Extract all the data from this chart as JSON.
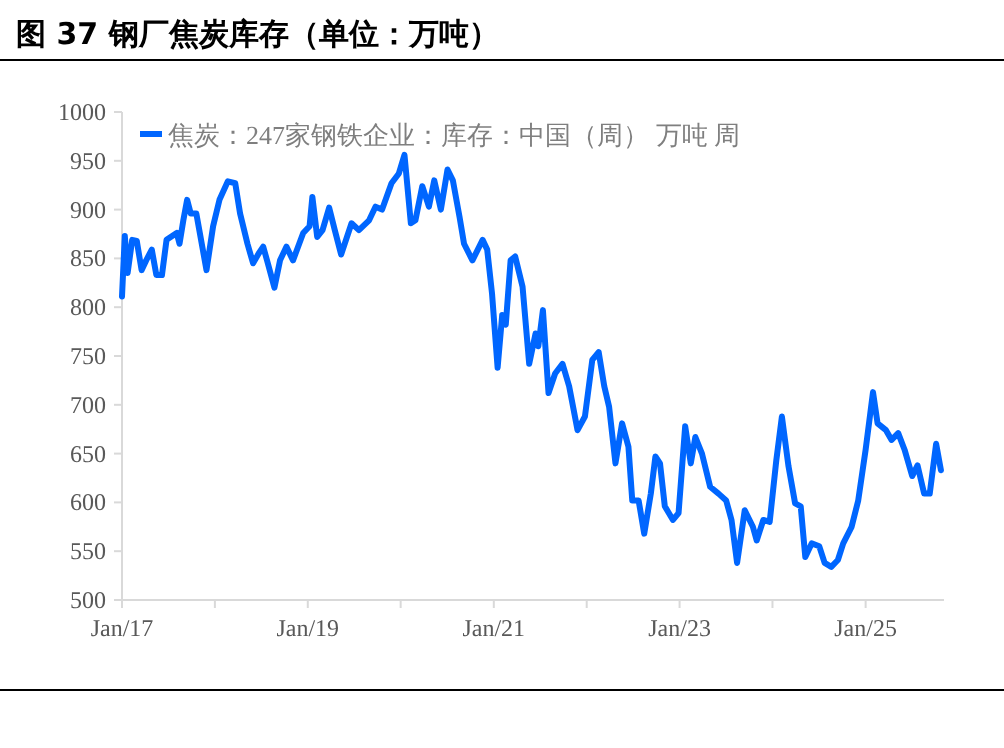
{
  "chart_data": {
    "type": "line",
    "title": "图 37 钢厂焦炭库存（单位：万吨）",
    "series": [
      {
        "name": "焦炭：247家钢铁企业：库存：中国（周） 万吨 周",
        "color": "#0066ff",
        "x": [
          "2017-01-01",
          "2017-01-12",
          "2017-01-23",
          "2017-02-10",
          "2017-02-28",
          "2017-03-19",
          "2017-04-06",
          "2017-04-28",
          "2017-05-16",
          "2017-06-07",
          "2017-06-25",
          "2017-08-04",
          "2017-08-15",
          "2017-08-30",
          "2017-09-14",
          "2017-09-28",
          "2017-10-20",
          "2017-11-29",
          "2017-12-25",
          "2018-01-19",
          "2018-02-21",
          "2018-03-22",
          "2018-04-10",
          "2018-05-09",
          "2018-05-31",
          "2018-06-22",
          "2018-07-10",
          "2018-07-28",
          "2018-08-23",
          "2018-09-14",
          "2018-10-09",
          "2018-11-04",
          "2018-12-14",
          "2019-01-08",
          "2019-01-19",
          "2019-02-07",
          "2019-02-28",
          "2019-03-26",
          "2019-04-17",
          "2019-05-12",
          "2019-06-22",
          "2019-07-21",
          "2019-08-30",
          "2019-09-24",
          "2019-10-20",
          "2019-11-26",
          "2019-12-25",
          "2020-01-16",
          "2020-02-10",
          "2020-02-28",
          "2020-03-26",
          "2020-04-21",
          "2020-05-12",
          "2020-06-07",
          "2020-07-03",
          "2020-07-24",
          "2020-08-19",
          "2020-09-06",
          "2020-10-09",
          "2020-11-18",
          "2020-12-06",
          "2020-12-25",
          "2021-01-16",
          "2021-02-03",
          "2021-02-17",
          "2021-03-08",
          "2021-03-26",
          "2021-04-24",
          "2021-05-20",
          "2021-06-14",
          "2021-06-25",
          "2021-07-13",
          "2021-08-04",
          "2021-08-30",
          "2021-09-28",
          "2021-10-24",
          "2021-11-26",
          "2021-12-25",
          "2022-01-23",
          "2022-02-17",
          "2022-03-11",
          "2022-03-30",
          "2022-04-24",
          "2022-05-20",
          "2022-06-14",
          "2022-06-29",
          "2022-07-24",
          "2022-08-15",
          "2022-09-10",
          "2022-09-28",
          "2022-10-16",
          "2022-11-04",
          "2022-12-06",
          "2022-12-28",
          "2023-01-23",
          "2023-02-14",
          "2023-03-04",
          "2023-03-30",
          "2023-05-01",
          "2023-06-03",
          "2023-07-03",
          "2023-07-24",
          "2023-08-15",
          "2023-09-14",
          "2023-10-16",
          "2023-10-31",
          "2023-11-26",
          "2023-12-21",
          "2024-01-16",
          "2024-02-07",
          "2024-03-04",
          "2024-03-30",
          "2024-04-21",
          "2024-05-09",
          "2024-06-03",
          "2024-07-03",
          "2024-07-24",
          "2024-08-19",
          "2024-09-14",
          "2024-10-05",
          "2024-11-07",
          "2024-12-03",
          "2025-01-01",
          "2025-01-30",
          "2025-02-17",
          "2025-03-22",
          "2025-04-13",
          "2025-05-09",
          "2025-06-03",
          "2025-07-03",
          "2025-07-24",
          "2025-08-19",
          "2025-09-10",
          "2025-10-05",
          "2025-10-24"
        ],
        "values": [
          811,
          873,
          835,
          869,
          868,
          838,
          848,
          859,
          833,
          833,
          869,
          876,
          865,
          889,
          910,
          896,
          896,
          838,
          883,
          910,
          929,
          927,
          896,
          865,
          845,
          855,
          862,
          845,
          820,
          848,
          862,
          848,
          876,
          883,
          913,
          872,
          879,
          902,
          879,
          854,
          886,
          879,
          889,
          903,
          900,
          927,
          937,
          956,
          886,
          889,
          924,
          903,
          930,
          900,
          941,
          930,
          893,
          865,
          848,
          869,
          859,
          814,
          738,
          792,
          782,
          848,
          852,
          821,
          742,
          773,
          760,
          797,
          712,
          732,
          742,
          719,
          674,
          688,
          746,
          754,
          719,
          698,
          640,
          681,
          657,
          602,
          602,
          568,
          609,
          647,
          640,
          596,
          582,
          589,
          678,
          640,
          667,
          650,
          616,
          609,
          602,
          582,
          538,
          592,
          575,
          561,
          582,
          580,
          643,
          688,
          637,
          599,
          596,
          544,
          558,
          555,
          538,
          534,
          541,
          558,
          575,
          602,
          654,
          713,
          681,
          674,
          664,
          671,
          654,
          627,
          638,
          609,
          609,
          660,
          633
        ]
      }
    ],
    "xlim": [
      "2017-01-01",
      "2025-11-05"
    ],
    "xticks": [
      {
        "value": "2017-01-01",
        "label": "Jan/17"
      },
      {
        "value": "2018-01-01",
        "label": null
      },
      {
        "value": "2019-01-01",
        "label": "Jan/19"
      },
      {
        "value": "2020-01-01",
        "label": null
      },
      {
        "value": "2021-01-01",
        "label": "Jan/21"
      },
      {
        "value": "2022-01-01",
        "label": null
      },
      {
        "value": "2023-01-01",
        "label": "Jan/23"
      },
      {
        "value": "2024-01-01",
        "label": null
      },
      {
        "value": "2025-01-01",
        "label": "Jan/25"
      }
    ],
    "ylim": [
      500,
      1000
    ],
    "yticks": [
      500,
      550,
      600,
      650,
      700,
      750,
      800,
      850,
      900,
      950,
      1000
    ],
    "legend": "top",
    "grid": false,
    "marker": "none",
    "line_style": "solid"
  }
}
